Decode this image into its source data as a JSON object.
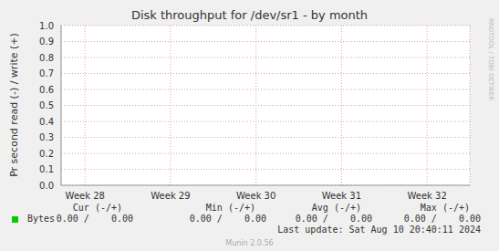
{
  "chart_data": {
    "type": "line",
    "title": "Disk throughput for /dev/sr1 - by month",
    "y_label": "Pr second read (-) / write (+)",
    "x": [
      28.5,
      29.5,
      30.5,
      31.5,
      32.5
    ],
    "series": [
      {
        "name": "Bytes",
        "color": "#00cc00",
        "values": [
          null,
          null,
          null,
          null,
          null
        ]
      }
    ],
    "xlim": [
      28.22,
      33.0
    ],
    "xticks": [
      {
        "value": 28.5,
        "label": "Week 28"
      },
      {
        "value": 29.5,
        "label": "Week 29"
      },
      {
        "value": 30.5,
        "label": "Week 30"
      },
      {
        "value": 31.5,
        "label": "Week 31"
      },
      {
        "value": 32.5,
        "label": "Week 32"
      }
    ],
    "ylim": [
      0,
      1
    ],
    "yticks": [
      {
        "value": 0,
        "label": "0.0"
      },
      {
        "value": 0.1,
        "label": "0.1"
      },
      {
        "value": 0.2,
        "label": "0.2"
      },
      {
        "value": 0.3,
        "label": "0.3"
      },
      {
        "value": 0.4,
        "label": "0.4"
      },
      {
        "value": 0.5,
        "label": "0.5"
      },
      {
        "value": 0.6,
        "label": "0.6"
      },
      {
        "value": 0.7,
        "label": "0.7"
      },
      {
        "value": 0.8,
        "label": "0.8"
      },
      {
        "value": 0.9,
        "label": "0.9"
      },
      {
        "value": 1,
        "label": "1.0"
      }
    ],
    "grid": true
  },
  "legend_table": {
    "headers": [
      "Cur (-/+)",
      "Min (-/+)",
      "Avg (-/+)",
      "Max (-/+)"
    ],
    "rows": [
      {
        "name": "Bytes",
        "color": "#00cc00",
        "cells": [
          "0.00 /    0.00",
          "0.00 /    0.00",
          "0.00 /    0.00",
          "0.00 /    0.00"
        ]
      }
    ]
  },
  "last_update": "Last update: Sat Aug 10 20:40:11 2024",
  "footer": "Munin 2.0.56",
  "side_text": "RRDTOOL / TOBI OETIKER"
}
